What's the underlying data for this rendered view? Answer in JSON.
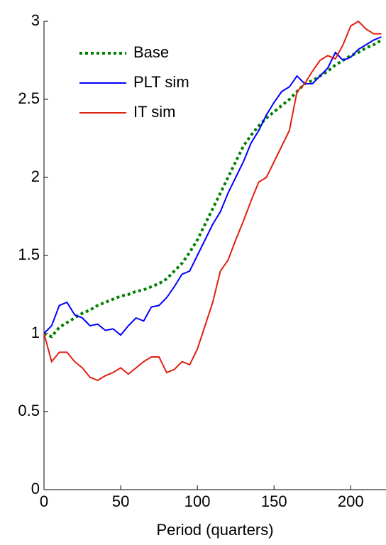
{
  "chart_data": {
    "type": "line",
    "x_label": "Period (quarters)",
    "x": [
      0,
      5,
      10,
      15,
      20,
      25,
      30,
      35,
      40,
      45,
      50,
      55,
      60,
      65,
      70,
      75,
      80,
      85,
      90,
      95,
      100,
      105,
      110,
      115,
      120,
      125,
      130,
      135,
      140,
      145,
      150,
      155,
      160,
      165,
      170,
      175,
      180,
      185,
      190,
      195,
      200,
      205,
      210,
      215,
      220
    ],
    "series": [
      {
        "name": "Base",
        "color": "#008000",
        "style": "dotted",
        "values": [
          1.0,
          0.98,
          1.04,
          1.07,
          1.1,
          1.13,
          1.15,
          1.18,
          1.2,
          1.22,
          1.24,
          1.25,
          1.27,
          1.28,
          1.3,
          1.32,
          1.35,
          1.4,
          1.45,
          1.52,
          1.6,
          1.7,
          1.8,
          1.9,
          2.0,
          2.1,
          2.2,
          2.27,
          2.33,
          2.38,
          2.42,
          2.46,
          2.5,
          2.55,
          2.6,
          2.62,
          2.65,
          2.68,
          2.72,
          2.75,
          2.78,
          2.8,
          2.83,
          2.85,
          2.88
        ]
      },
      {
        "name": "PLT sim",
        "color": "#0000ff",
        "style": "solid",
        "values": [
          1.0,
          1.05,
          1.18,
          1.2,
          1.12,
          1.1,
          1.05,
          1.06,
          1.02,
          1.03,
          0.99,
          1.05,
          1.1,
          1.08,
          1.17,
          1.18,
          1.23,
          1.3,
          1.38,
          1.4,
          1.5,
          1.6,
          1.7,
          1.78,
          1.9,
          2.0,
          2.1,
          2.22,
          2.3,
          2.4,
          2.48,
          2.55,
          2.58,
          2.65,
          2.6,
          2.6,
          2.65,
          2.7,
          2.8,
          2.75,
          2.77,
          2.82,
          2.85,
          2.88,
          2.9
        ]
      },
      {
        "name": "IT sim",
        "color": "#e02010",
        "style": "solid",
        "values": [
          1.0,
          0.82,
          0.88,
          0.88,
          0.82,
          0.78,
          0.72,
          0.7,
          0.73,
          0.75,
          0.78,
          0.74,
          0.78,
          0.82,
          0.85,
          0.85,
          0.75,
          0.77,
          0.82,
          0.8,
          0.9,
          1.05,
          1.2,
          1.4,
          1.47,
          1.6,
          1.72,
          1.85,
          1.97,
          2.0,
          2.1,
          2.2,
          2.3,
          2.55,
          2.6,
          2.68,
          2.75,
          2.78,
          2.76,
          2.85,
          2.97,
          3.0,
          2.95,
          2.92,
          2.92
        ]
      }
    ],
    "xlim": [
      0,
      223
    ],
    "xticks": [
      0,
      50,
      100,
      150,
      200
    ],
    "ylim": [
      0,
      3
    ],
    "yticks": [
      0,
      0.5,
      1,
      1.5,
      2,
      2.5,
      3
    ],
    "legend": "upper-left"
  }
}
